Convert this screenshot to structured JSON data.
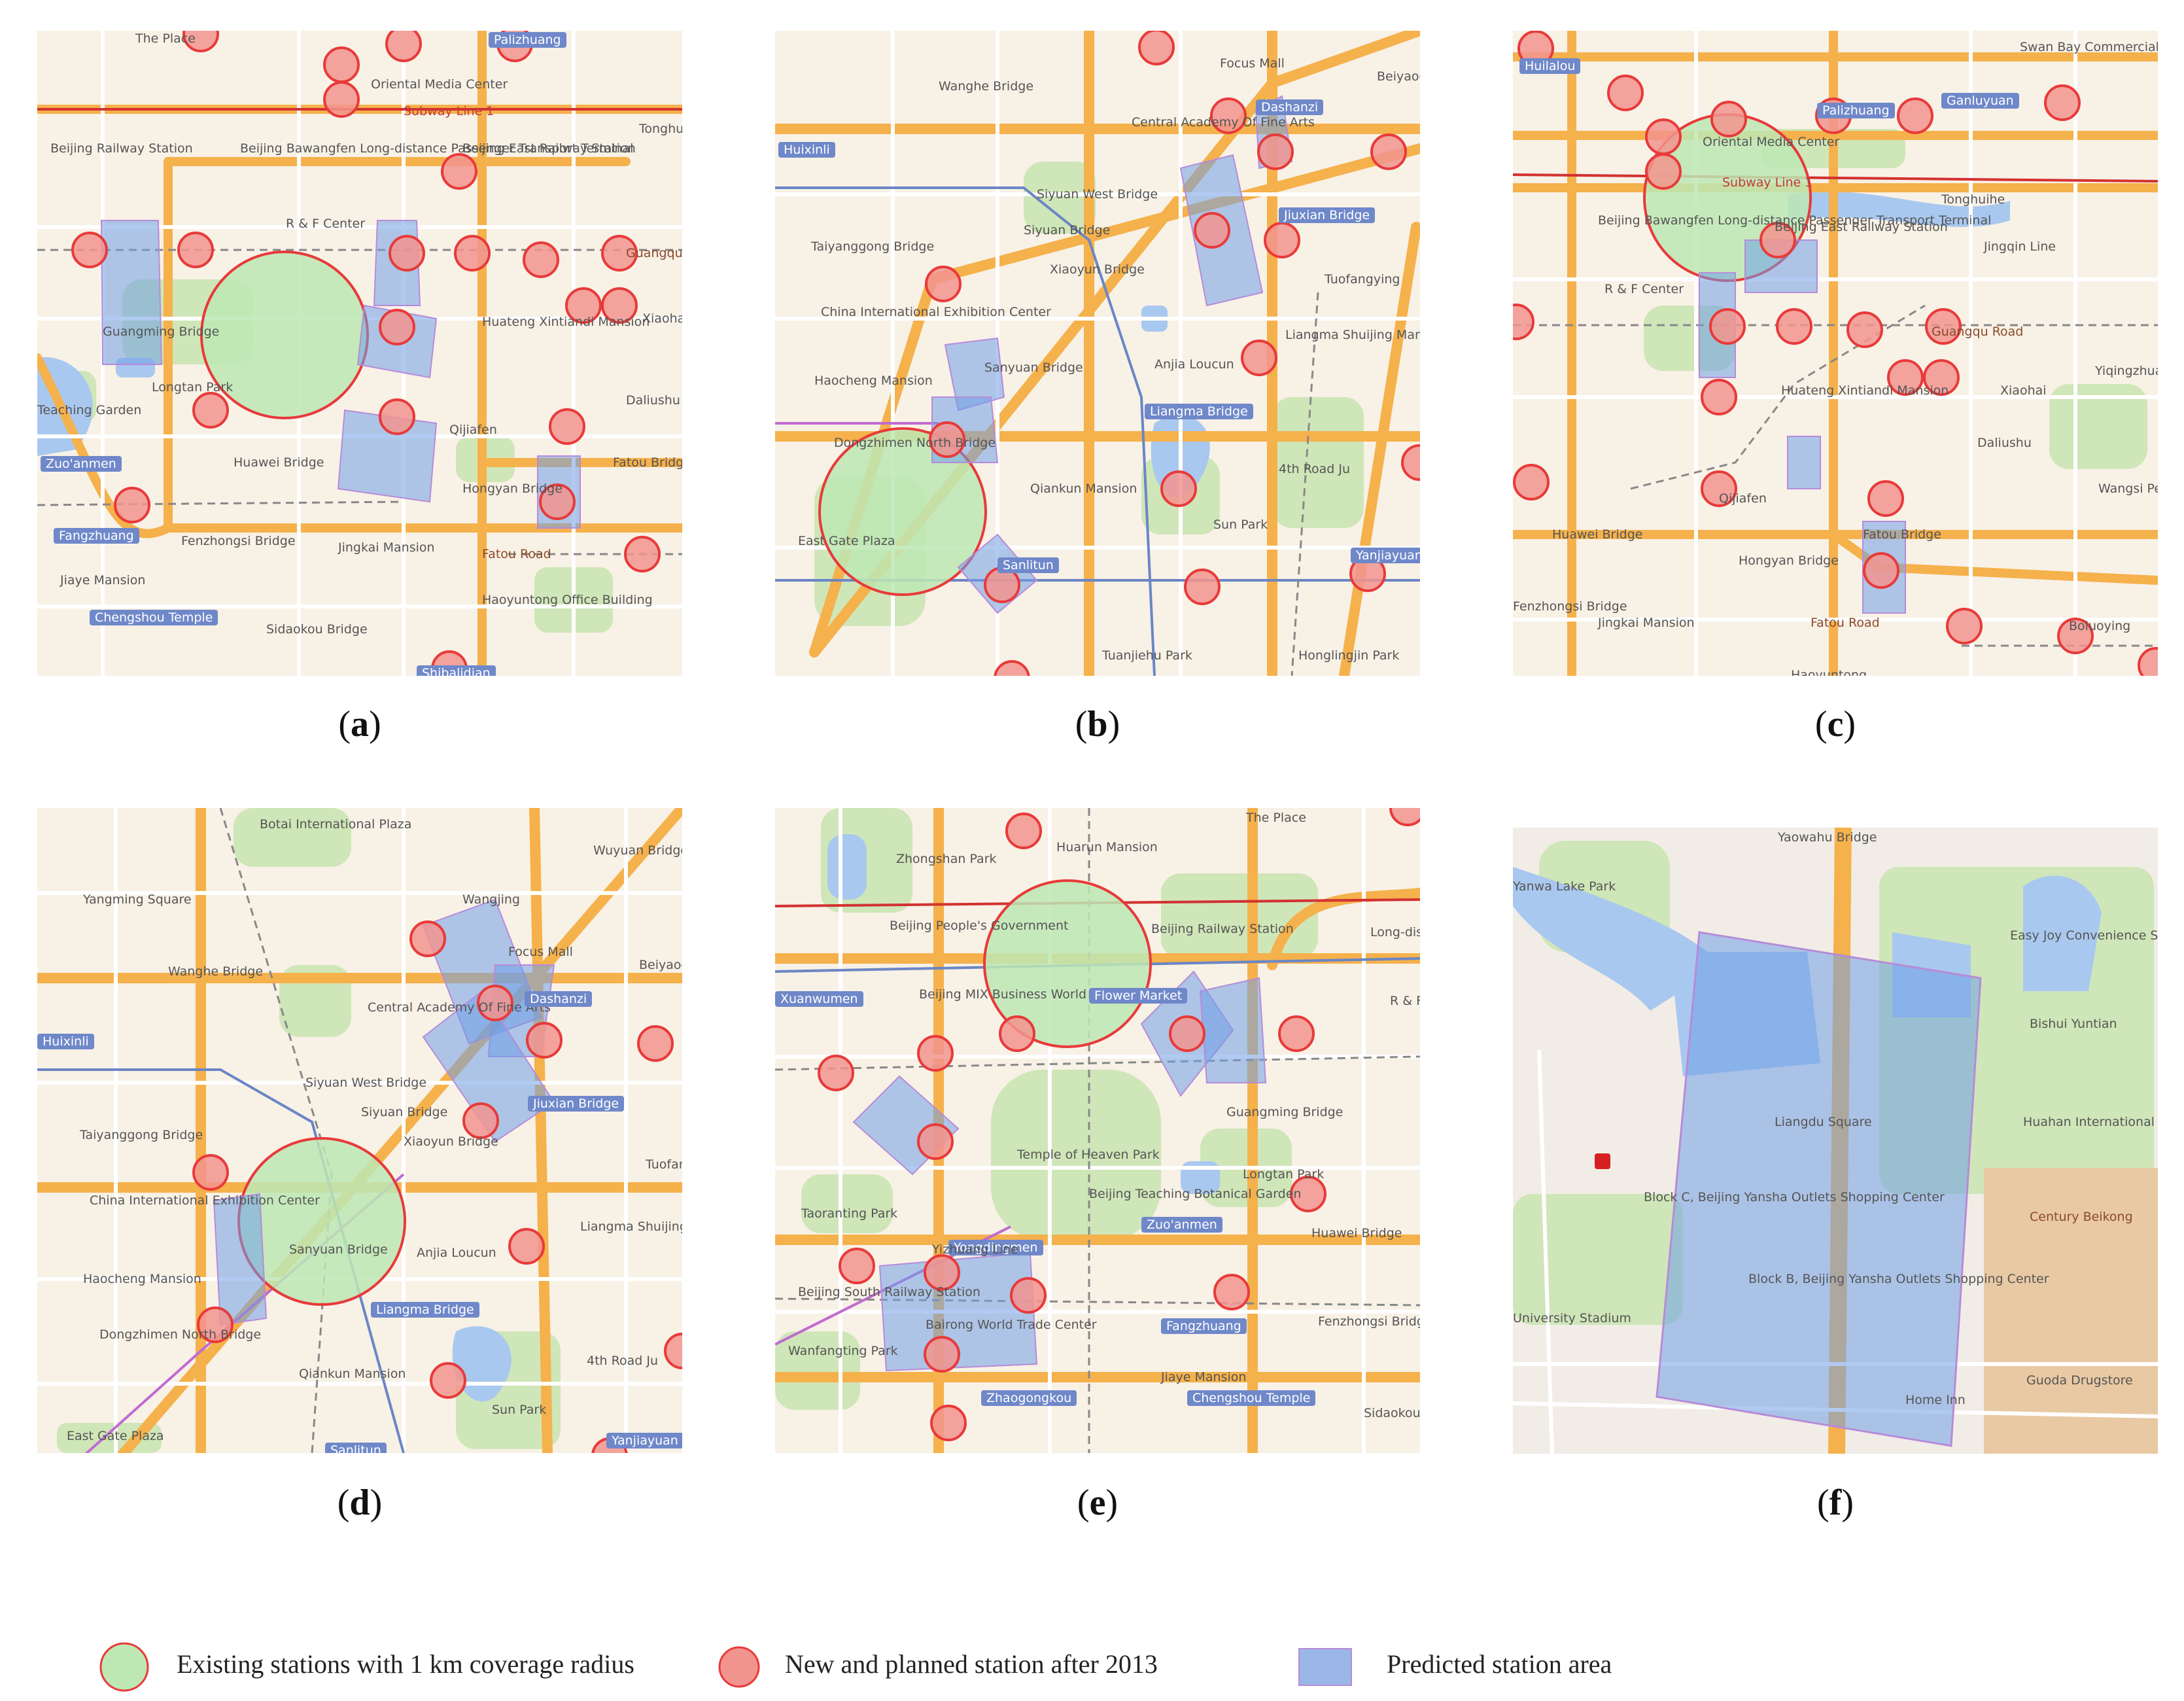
{
  "colors": {
    "background": "#f8f1e6",
    "road_major": "#f5b14b",
    "road_minor": "#ffffff",
    "park": "#cfe6b8",
    "water": "#a9c8ef",
    "subway_line1": "#d23232",
    "subway_other": "#6b86c5",
    "coverage_fill": "#bde8b4",
    "coverage_stroke": "#e83a3a",
    "new_station_fill": "#f2948e",
    "predicted_fill": "#6f9fe6"
  },
  "panels": [
    {
      "caption": "a",
      "labels": [
        {
          "text": "The Place",
          "kind": "place"
        },
        {
          "text": "Palizhuang",
          "kind": "tag"
        },
        {
          "text": "Oriental Media Center",
          "kind": "place"
        },
        {
          "text": "Subway Line 1",
          "kind": "line"
        },
        {
          "text": "Tonghuihe",
          "kind": "place"
        },
        {
          "text": "Beijing Railway Station",
          "kind": "place"
        },
        {
          "text": "Beijing Bawangfen Long-distance Passenger Transport Terminal",
          "kind": "place"
        },
        {
          "text": "Beijing East Railway Station",
          "kind": "place"
        },
        {
          "text": "R & F Center",
          "kind": "place"
        },
        {
          "text": "Guangqu Road",
          "kind": "road"
        },
        {
          "text": "Guangming Bridge",
          "kind": "place"
        },
        {
          "text": "Huateng Xintiandi Mansion",
          "kind": "place"
        },
        {
          "text": "Xiaohai",
          "kind": "place"
        },
        {
          "text": "Longtan Park",
          "kind": "place"
        },
        {
          "text": "Daliushu",
          "kind": "place"
        },
        {
          "text": "Teaching Garden",
          "kind": "place"
        },
        {
          "text": "Qijiafen",
          "kind": "place"
        },
        {
          "text": "Zuo'anmen",
          "kind": "tag"
        },
        {
          "text": "Huawei Bridge",
          "kind": "place"
        },
        {
          "text": "Hongyan Bridge",
          "kind": "place"
        },
        {
          "text": "Fatou Bridge",
          "kind": "place"
        },
        {
          "text": "Fangzhuang",
          "kind": "tag"
        },
        {
          "text": "Fenzhongsi Bridge",
          "kind": "place"
        },
        {
          "text": "Jingkai Mansion",
          "kind": "place"
        },
        {
          "text": "Fatou Road",
          "kind": "road"
        },
        {
          "text": "Jiaye Mansion",
          "kind": "place"
        },
        {
          "text": "Haoyuntong Office Building",
          "kind": "place"
        },
        {
          "text": "Chengshou Temple",
          "kind": "tag"
        },
        {
          "text": "Sidaokou Bridge",
          "kind": "place"
        },
        {
          "text": "Shibalidian",
          "kind": "tag"
        }
      ]
    },
    {
      "caption": "b",
      "labels": [
        {
          "text": "Focus Mall",
          "kind": "place"
        },
        {
          "text": "Wanghe Bridge",
          "kind": "place"
        },
        {
          "text": "Dashanzi",
          "kind": "tag"
        },
        {
          "text": "Beiyaodi",
          "kind": "place"
        },
        {
          "text": "Central Academy Of Fine Arts",
          "kind": "place"
        },
        {
          "text": "Huixinli",
          "kind": "tag"
        },
        {
          "text": "Siyuan West Bridge",
          "kind": "place"
        },
        {
          "text": "Jiuxian Bridge",
          "kind": "tag"
        },
        {
          "text": "Siyuan Bridge",
          "kind": "place"
        },
        {
          "text": "Taiyanggong Bridge",
          "kind": "place"
        },
        {
          "text": "Xiaoyun Bridge",
          "kind": "place"
        },
        {
          "text": "Tuofangying",
          "kind": "place"
        },
        {
          "text": "China International Exhibition Center",
          "kind": "place"
        },
        {
          "text": "Liangma Shuijing Mansion",
          "kind": "place"
        },
        {
          "text": "Haocheng Mansion",
          "kind": "place"
        },
        {
          "text": "Sanyuan Bridge",
          "kind": "place"
        },
        {
          "text": "Anjia Loucun",
          "kind": "place"
        },
        {
          "text": "Liangma Bridge",
          "kind": "tag"
        },
        {
          "text": "Dongzhimen North Bridge",
          "kind": "place"
        },
        {
          "text": "4th Road Ju",
          "kind": "place"
        },
        {
          "text": "Qiankun Mansion",
          "kind": "place"
        },
        {
          "text": "Sun Park",
          "kind": "place"
        },
        {
          "text": "East Gate Plaza",
          "kind": "place"
        },
        {
          "text": "Yanjiayuan",
          "kind": "tag"
        },
        {
          "text": "Sanlitun",
          "kind": "tag"
        },
        {
          "text": "Tuanjiehu Park",
          "kind": "place"
        },
        {
          "text": "Honglingjin Park",
          "kind": "place"
        }
      ]
    },
    {
      "caption": "c",
      "labels": [
        {
          "text": "Huilalou",
          "kind": "tag"
        },
        {
          "text": "Swan Bay Commercial Special Zone",
          "kind": "place"
        },
        {
          "text": "Palizhuang",
          "kind": "tag"
        },
        {
          "text": "Ganluyuan",
          "kind": "tag"
        },
        {
          "text": "Oriental Media Center",
          "kind": "place"
        },
        {
          "text": "Subway Line 1",
          "kind": "line"
        },
        {
          "text": "Tonghuihe",
          "kind": "place"
        },
        {
          "text": "Beijing Bawangfen Long-distance Passenger Transport Terminal",
          "kind": "place"
        },
        {
          "text": "Beijing East Railway Station",
          "kind": "place"
        },
        {
          "text": "Jingqin Line",
          "kind": "place"
        },
        {
          "text": "R & F Center",
          "kind": "place"
        },
        {
          "text": "Guangqu Road",
          "kind": "road"
        },
        {
          "text": "Yiqingzhuang",
          "kind": "place"
        },
        {
          "text": "Huateng Xintiandi Mansion",
          "kind": "place"
        },
        {
          "text": "Xiaohai",
          "kind": "place"
        },
        {
          "text": "Daliushu",
          "kind": "place"
        },
        {
          "text": "Wangsi People's",
          "kind": "place"
        },
        {
          "text": "Qijiafen",
          "kind": "place"
        },
        {
          "text": "Huawei Bridge",
          "kind": "place"
        },
        {
          "text": "Fatou Bridge",
          "kind": "place"
        },
        {
          "text": "Hongyan Bridge",
          "kind": "place"
        },
        {
          "text": "Fenzhongsi Bridge",
          "kind": "place"
        },
        {
          "text": "Jingkai Mansion",
          "kind": "place"
        },
        {
          "text": "Fatou Road",
          "kind": "road"
        },
        {
          "text": "Boluoying",
          "kind": "place"
        },
        {
          "text": "Haoyuntong",
          "kind": "place"
        }
      ]
    },
    {
      "caption": "d",
      "labels": [
        {
          "text": "Botai International Plaza",
          "kind": "place"
        },
        {
          "text": "Wuyuan Bridge",
          "kind": "place"
        },
        {
          "text": "Yangming Square",
          "kind": "place"
        },
        {
          "text": "Wangjing",
          "kind": "place"
        },
        {
          "text": "Focus Mall",
          "kind": "place"
        },
        {
          "text": "Wanghe Bridge",
          "kind": "place"
        },
        {
          "text": "Beiyaodi",
          "kind": "place"
        },
        {
          "text": "Central Academy Of Fine Arts",
          "kind": "place"
        },
        {
          "text": "Dashanzi",
          "kind": "tag"
        },
        {
          "text": "Huixinli",
          "kind": "tag"
        },
        {
          "text": "Siyuan West Bridge",
          "kind": "place"
        },
        {
          "text": "Jiuxian Bridge",
          "kind": "tag"
        },
        {
          "text": "Taiyanggong Bridge",
          "kind": "place"
        },
        {
          "text": "Siyuan Bridge",
          "kind": "place"
        },
        {
          "text": "Xiaoyun Bridge",
          "kind": "place"
        },
        {
          "text": "Tuofangying",
          "kind": "place"
        },
        {
          "text": "China International Exhibition Center",
          "kind": "place"
        },
        {
          "text": "Sanyuan Bridge",
          "kind": "place"
        },
        {
          "text": "Liangma Shuijing Mansion",
          "kind": "place"
        },
        {
          "text": "Anjia Loucun",
          "kind": "place"
        },
        {
          "text": "Haocheng Mansion",
          "kind": "place"
        },
        {
          "text": "Liangma Bridge",
          "kind": "tag"
        },
        {
          "text": "Dongzhimen North Bridge",
          "kind": "place"
        },
        {
          "text": "4th Road Ju",
          "kind": "place"
        },
        {
          "text": "Qiankun Mansion",
          "kind": "place"
        },
        {
          "text": "Sun Park",
          "kind": "place"
        },
        {
          "text": "East Gate Plaza",
          "kind": "place"
        },
        {
          "text": "Sanlitun",
          "kind": "tag"
        },
        {
          "text": "Yanjiayuan",
          "kind": "tag"
        }
      ]
    },
    {
      "caption": "e",
      "labels": [
        {
          "text": "The Place",
          "kind": "place"
        },
        {
          "text": "Huarun Mansion",
          "kind": "place"
        },
        {
          "text": "Zhongshan Park",
          "kind": "place"
        },
        {
          "text": "Beijing People's Government",
          "kind": "place"
        },
        {
          "text": "Beijing Railway Station",
          "kind": "place"
        },
        {
          "text": "Long-distance Transport",
          "kind": "place"
        },
        {
          "text": "Beijing MIX Business World 2",
          "kind": "place"
        },
        {
          "text": "Flower Market",
          "kind": "tag"
        },
        {
          "text": "R & F Center",
          "kind": "place"
        },
        {
          "text": "Xuanwumen",
          "kind": "tag"
        },
        {
          "text": "Guangming Bridge",
          "kind": "place"
        },
        {
          "text": "Taoranting Park",
          "kind": "place"
        },
        {
          "text": "Temple of Heaven Park",
          "kind": "place"
        },
        {
          "text": "Longtan Park",
          "kind": "place"
        },
        {
          "text": "Beijing Teaching Botanical Garden",
          "kind": "place"
        },
        {
          "text": "Zuo'anmen",
          "kind": "tag"
        },
        {
          "text": "Huawei Bridge",
          "kind": "place"
        },
        {
          "text": "Yongdingmen",
          "kind": "tag"
        },
        {
          "text": "Yizhuang Line",
          "kind": "place"
        },
        {
          "text": "Beijing South Railway Station",
          "kind": "place"
        },
        {
          "text": "Bairong World Trade Center",
          "kind": "place"
        },
        {
          "text": "Fangzhuang",
          "kind": "tag"
        },
        {
          "text": "Fenzhongsi Bridge",
          "kind": "place"
        },
        {
          "text": "Wanfangting Park",
          "kind": "place"
        },
        {
          "text": "Jiaye Mansion",
          "kind": "place"
        },
        {
          "text": "Zhaogongkou",
          "kind": "tag"
        },
        {
          "text": "Chengshou Temple",
          "kind": "tag"
        },
        {
          "text": "Sidaokou",
          "kind": "place"
        }
      ]
    },
    {
      "caption": "f",
      "labels": [
        {
          "text": "Yaowahu Bridge",
          "kind": "place"
        },
        {
          "text": "Yanwa Lake Park",
          "kind": "place"
        },
        {
          "text": "Easy Joy Convenience Store",
          "kind": "place"
        },
        {
          "text": "Bishui Yuntian",
          "kind": "place"
        },
        {
          "text": "Huahan International",
          "kind": "place"
        },
        {
          "text": "Liangdu Square",
          "kind": "place"
        },
        {
          "text": "Block C, Beijing Yansha Outlets Shopping Center",
          "kind": "place"
        },
        {
          "text": "Century Beikong",
          "kind": "road"
        },
        {
          "text": "Block B, Beijing Yansha Outlets Shopping Center",
          "kind": "place"
        },
        {
          "text": "University Stadium",
          "kind": "place"
        },
        {
          "text": "Guoda Drugstore",
          "kind": "place"
        },
        {
          "text": "Home Inn",
          "kind": "place"
        }
      ]
    }
  ],
  "legend": [
    {
      "key": "existing",
      "text": "Existing stations with 1 km coverage radius",
      "icon": "green-circle-red-outline"
    },
    {
      "key": "new",
      "text": "New and planned station after 2013",
      "icon": "red-filled-circle"
    },
    {
      "key": "predicted",
      "text": "Predicted station area",
      "icon": "blue-square"
    }
  ]
}
